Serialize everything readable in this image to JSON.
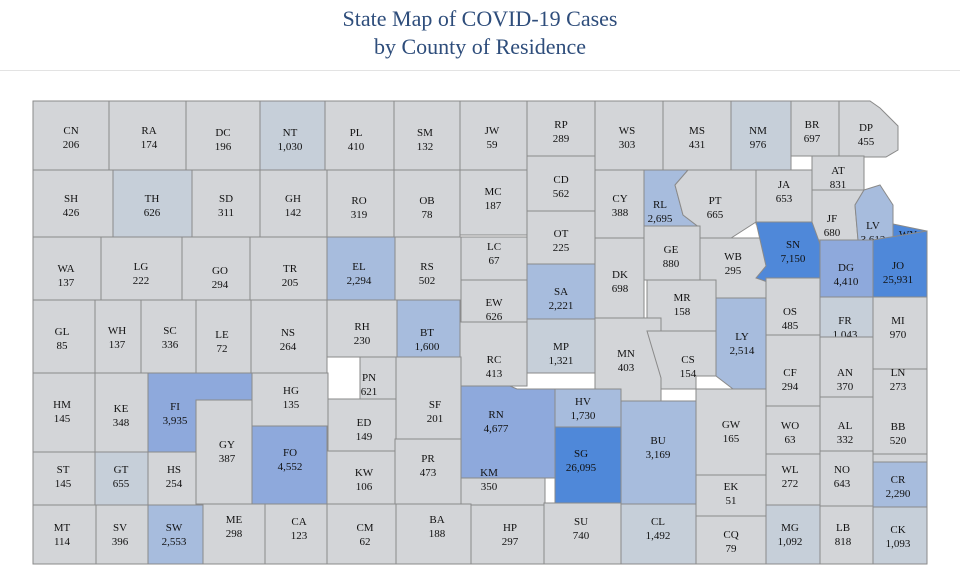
{
  "title": {
    "line1": "State Map of COVID-19 Cases",
    "line2": "by County of Residence"
  },
  "colors": {
    "title": "#2e4d7b",
    "border": "#8a8a8a",
    "scale": [
      "#d3d5d8",
      "#c6cfd9",
      "#a7bcdd",
      "#8ea9dc",
      "#4f88d9"
    ]
  },
  "counties": [
    {
      "abbr": "CN",
      "cases": "206",
      "level": 0
    },
    {
      "abbr": "RA",
      "cases": "174",
      "level": 0
    },
    {
      "abbr": "DC",
      "cases": "196",
      "level": 0
    },
    {
      "abbr": "NT",
      "cases": "1,030",
      "level": 1
    },
    {
      "abbr": "PL",
      "cases": "410",
      "level": 0
    },
    {
      "abbr": "SM",
      "cases": "132",
      "level": 0
    },
    {
      "abbr": "JW",
      "cases": "59",
      "level": 0
    },
    {
      "abbr": "RP",
      "cases": "289",
      "level": 0
    },
    {
      "abbr": "WS",
      "cases": "303",
      "level": 0
    },
    {
      "abbr": "MS",
      "cases": "431",
      "level": 0
    },
    {
      "abbr": "NM",
      "cases": "976",
      "level": 1
    },
    {
      "abbr": "BR",
      "cases": "697",
      "level": 0
    },
    {
      "abbr": "DP",
      "cases": "455",
      "level": 0
    },
    {
      "abbr": "SH",
      "cases": "426",
      "level": 0
    },
    {
      "abbr": "TH",
      "cases": "626",
      "level": 1
    },
    {
      "abbr": "SD",
      "cases": "311",
      "level": 0
    },
    {
      "abbr": "GH",
      "cases": "142",
      "level": 0
    },
    {
      "abbr": "RO",
      "cases": "319",
      "level": 0
    },
    {
      "abbr": "OB",
      "cases": "78",
      "level": 0
    },
    {
      "abbr": "MC",
      "cases": "187",
      "level": 0
    },
    {
      "abbr": "CD",
      "cases": "562",
      "level": 0
    },
    {
      "abbr": "CY",
      "cases": "388",
      "level": 0
    },
    {
      "abbr": "RL",
      "cases": "2,695",
      "level": 2
    },
    {
      "abbr": "PT",
      "cases": "665",
      "level": 0
    },
    {
      "abbr": "JA",
      "cases": "653",
      "level": 0
    },
    {
      "abbr": "AT",
      "cases": "831",
      "level": 0
    },
    {
      "abbr": "JF",
      "cases": "680",
      "level": 0
    },
    {
      "abbr": "LV",
      "cases": "3,612",
      "level": 2
    },
    {
      "abbr": "WY",
      "cases": "11,177",
      "level": 4
    },
    {
      "abbr": "WA",
      "cases": "137",
      "level": 0
    },
    {
      "abbr": "LG",
      "cases": "222",
      "level": 0
    },
    {
      "abbr": "GO",
      "cases": "294",
      "level": 0
    },
    {
      "abbr": "TR",
      "cases": "205",
      "level": 0
    },
    {
      "abbr": "EL",
      "cases": "2,294",
      "level": 2
    },
    {
      "abbr": "RS",
      "cases": "502",
      "level": 0
    },
    {
      "abbr": "LC",
      "cases": "67",
      "level": 0
    },
    {
      "abbr": "OT",
      "cases": "225",
      "level": 0
    },
    {
      "abbr": "GE",
      "cases": "880",
      "level": 0
    },
    {
      "abbr": "WB",
      "cases": "295",
      "level": 0
    },
    {
      "abbr": "SN",
      "cases": "7,150",
      "level": 4
    },
    {
      "abbr": "DG",
      "cases": "4,410",
      "level": 3
    },
    {
      "abbr": "JO",
      "cases": "25,931",
      "level": 4
    },
    {
      "abbr": "EW",
      "cases": "626",
      "level": 0
    },
    {
      "abbr": "SA",
      "cases": "2,221",
      "level": 2
    },
    {
      "abbr": "DK",
      "cases": "698",
      "level": 0
    },
    {
      "abbr": "MR",
      "cases": "158",
      "level": 0
    },
    {
      "abbr": "GL",
      "cases": "85",
      "level": 0
    },
    {
      "abbr": "WH",
      "cases": "137",
      "level": 0
    },
    {
      "abbr": "SC",
      "cases": "336",
      "level": 0
    },
    {
      "abbr": "LE",
      "cases": "72",
      "level": 0
    },
    {
      "abbr": "NS",
      "cases": "264",
      "level": 0
    },
    {
      "abbr": "RH",
      "cases": "230",
      "level": 0
    },
    {
      "abbr": "BT",
      "cases": "1,600",
      "level": 2
    },
    {
      "abbr": "OS",
      "cases": "485",
      "level": 0
    },
    {
      "abbr": "FR",
      "cases": "1,043",
      "level": 1
    },
    {
      "abbr": "MI",
      "cases": "970",
      "level": 0
    },
    {
      "abbr": "LY",
      "cases": "2,514",
      "level": 2
    },
    {
      "abbr": "MP",
      "cases": "1,321",
      "level": 1
    },
    {
      "abbr": "RC",
      "cases": "413",
      "level": 0
    },
    {
      "abbr": "MN",
      "cases": "403",
      "level": 0
    },
    {
      "abbr": "CS",
      "cases": "154",
      "level": 0
    },
    {
      "abbr": "PN",
      "cases": "621",
      "level": 0
    },
    {
      "abbr": "CF",
      "cases": "294",
      "level": 0
    },
    {
      "abbr": "AN",
      "cases": "370",
      "level": 0
    },
    {
      "abbr": "LN",
      "cases": "273",
      "level": 0
    },
    {
      "abbr": "HM",
      "cases": "145",
      "level": 0
    },
    {
      "abbr": "KE",
      "cases": "348",
      "level": 0
    },
    {
      "abbr": "FI",
      "cases": "3,935",
      "level": 3
    },
    {
      "abbr": "HG",
      "cases": "135",
      "level": 0
    },
    {
      "abbr": "ED",
      "cases": "149",
      "level": 0
    },
    {
      "abbr": "SF",
      "cases": "201",
      "level": 0
    },
    {
      "abbr": "RN",
      "cases": "4,677",
      "level": 3
    },
    {
      "abbr": "HV",
      "cases": "1,730",
      "level": 2
    },
    {
      "abbr": "BU",
      "cases": "3,169",
      "level": 2
    },
    {
      "abbr": "GW",
      "cases": "165",
      "level": 0
    },
    {
      "abbr": "WO",
      "cases": "63",
      "level": 0
    },
    {
      "abbr": "AL",
      "cases": "332",
      "level": 0
    },
    {
      "abbr": "BB",
      "cases": "520",
      "level": 0
    },
    {
      "abbr": "GY",
      "cases": "387",
      "level": 0
    },
    {
      "abbr": "FO",
      "cases": "4,552",
      "level": 3
    },
    {
      "abbr": "SG",
      "cases": "26,095",
      "level": 4
    },
    {
      "abbr": "ST",
      "cases": "145",
      "level": 0
    },
    {
      "abbr": "GT",
      "cases": "655",
      "level": 1
    },
    {
      "abbr": "HS",
      "cases": "254",
      "level": 0
    },
    {
      "abbr": "KW",
      "cases": "106",
      "level": 0
    },
    {
      "abbr": "PR",
      "cases": "473",
      "level": 0
    },
    {
      "abbr": "KM",
      "cases": "350",
      "level": 0
    },
    {
      "abbr": "EK",
      "cases": "51",
      "level": 0
    },
    {
      "abbr": "WL",
      "cases": "272",
      "level": 0
    },
    {
      "abbr": "NO",
      "cases": "643",
      "level": 0
    },
    {
      "abbr": "CR",
      "cases": "2,290",
      "level": 2
    },
    {
      "abbr": "MT",
      "cases": "114",
      "level": 0
    },
    {
      "abbr": "SV",
      "cases": "396",
      "level": 0
    },
    {
      "abbr": "SW",
      "cases": "2,553",
      "level": 2
    },
    {
      "abbr": "ME",
      "cases": "298",
      "level": 0
    },
    {
      "abbr": "CA",
      "cases": "123",
      "level": 0
    },
    {
      "abbr": "CM",
      "cases": "62",
      "level": 0
    },
    {
      "abbr": "BA",
      "cases": "188",
      "level": 0
    },
    {
      "abbr": "HP",
      "cases": "297",
      "level": 0
    },
    {
      "abbr": "SU",
      "cases": "740",
      "level": 0
    },
    {
      "abbr": "CL",
      "cases": "1,492",
      "level": 1
    },
    {
      "abbr": "CQ",
      "cases": "79",
      "level": 0
    },
    {
      "abbr": "MG",
      "cases": "1,092",
      "level": 1
    },
    {
      "abbr": "LB",
      "cases": "818",
      "level": 0
    },
    {
      "abbr": "CK",
      "cases": "1,093",
      "level": 1
    }
  ]
}
